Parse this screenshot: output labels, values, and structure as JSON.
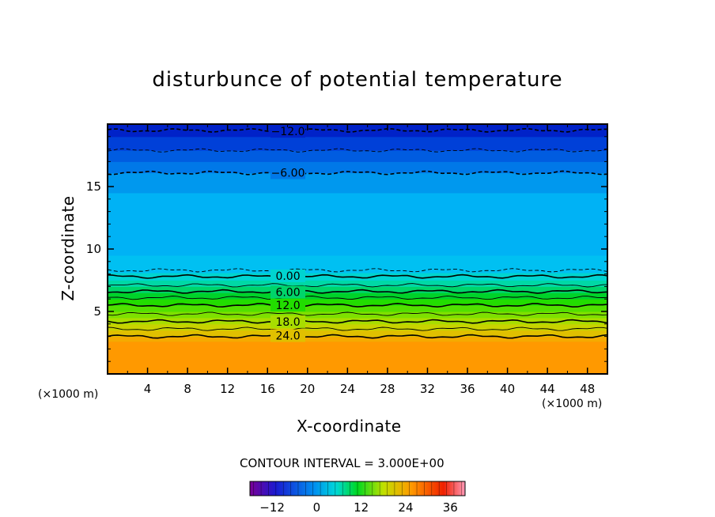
{
  "chart_data": {
    "type": "heatmap",
    "title": "disturbunce of potential temperature",
    "xlabel": "X-coordinate",
    "ylabel": "Z-coordinate",
    "x_unit": "(×1000 m)",
    "x_ticks": [
      4,
      8,
      12,
      16,
      20,
      24,
      28,
      32,
      36,
      40,
      44,
      48
    ],
    "y_ticks": [
      5,
      10,
      15
    ],
    "xlim": [
      0,
      50
    ],
    "ylim": [
      0,
      20
    ],
    "grid": false,
    "contour_interval_text": "CONTOUR INTERVAL = 3.000E+00",
    "colorbar": {
      "range": [
        -18,
        40
      ],
      "tick_values": [
        -12,
        0,
        12,
        24,
        36
      ],
      "tick_labels": [
        "−12",
        "0",
        "12",
        "24",
        "36"
      ]
    },
    "bands": [
      {
        "z0": 0.0,
        "z1": 2.6,
        "value": 27,
        "color": "#ff9900"
      },
      {
        "z0": 2.6,
        "z1": 3.0,
        "value": 25.5,
        "color": "#f5aa00"
      },
      {
        "z0": 3.0,
        "z1": 3.5,
        "value": 24,
        "color": "#e0c000"
      },
      {
        "z0": 3.5,
        "z1": 4.0,
        "value": 22,
        "color": "#c8d200"
      },
      {
        "z0": 4.0,
        "z1": 4.5,
        "value": 19.5,
        "color": "#a8dd00"
      },
      {
        "z0": 4.5,
        "z1": 5.0,
        "value": 17,
        "color": "#7ee000"
      },
      {
        "z0": 5.0,
        "z1": 5.5,
        "value": 14.5,
        "color": "#52e000"
      },
      {
        "z0": 5.5,
        "z1": 6.0,
        "value": 12,
        "color": "#22dd00"
      },
      {
        "z0": 6.0,
        "z1": 6.5,
        "value": 9.5,
        "color": "#00d22a"
      },
      {
        "z0": 6.5,
        "z1": 7.0,
        "value": 7,
        "color": "#00d46a"
      },
      {
        "z0": 7.0,
        "z1": 7.5,
        "value": 4.5,
        "color": "#00d8a6"
      },
      {
        "z0": 7.5,
        "z1": 8.1,
        "value": 2,
        "color": "#00d4d0"
      },
      {
        "z0": 8.1,
        "z1": 9.5,
        "value": -1,
        "color": "#00c0f2"
      },
      {
        "z0": 9.5,
        "z1": 14.5,
        "value": -2.5,
        "color": "#00b2f5"
      },
      {
        "z0": 14.5,
        "z1": 16.1,
        "value": -4.5,
        "color": "#0098ee"
      },
      {
        "z0": 16.1,
        "z1": 17.0,
        "value": -7,
        "color": "#0078e8"
      },
      {
        "z0": 17.0,
        "z1": 17.9,
        "value": -9,
        "color": "#005ce0"
      },
      {
        "z0": 17.9,
        "z1": 19.0,
        "value": -11,
        "color": "#0040d8"
      },
      {
        "z0": 19.0,
        "z1": 20.0,
        "value": -13,
        "color": "#0022c8"
      }
    ],
    "contours": [
      {
        "value": 24.0,
        "z": 3.0,
        "style": "solid",
        "label": "24.0",
        "label_x": 16.3
      },
      {
        "value": 21.0,
        "z": 3.6,
        "style": "solid",
        "label": "",
        "label_x": 0
      },
      {
        "value": 18.0,
        "z": 4.2,
        "style": "solid",
        "label": "18.0",
        "label_x": 16.3
      },
      {
        "value": 15.0,
        "z": 4.8,
        "style": "solid",
        "label": "",
        "label_x": 0
      },
      {
        "value": 12.0,
        "z": 5.5,
        "style": "solid",
        "label": "12.0",
        "label_x": 16.3
      },
      {
        "value": 9.0,
        "z": 6.1,
        "style": "solid",
        "label": "",
        "label_x": 0
      },
      {
        "value": 6.0,
        "z": 6.6,
        "style": "solid",
        "label": "6.00",
        "label_x": 16.3
      },
      {
        "value": 3.0,
        "z": 7.1,
        "style": "solid",
        "label": "",
        "label_x": 0
      },
      {
        "value": 0.0,
        "z": 7.8,
        "style": "solid",
        "label": "0.00",
        "label_x": 16.3
      },
      {
        "value": -3.0,
        "z": 8.3,
        "style": "dashed",
        "label": "",
        "label_x": 0
      },
      {
        "value": -6.0,
        "z": 16.1,
        "style": "dashed",
        "label": "−6.00",
        "label_x": 16.3
      },
      {
        "value": -9.0,
        "z": 17.9,
        "style": "dashed",
        "label": "",
        "label_x": 0
      },
      {
        "value": -12.0,
        "z": 19.5,
        "style": "dashed",
        "label": "−12.0",
        "label_x": 16.3
      }
    ]
  }
}
